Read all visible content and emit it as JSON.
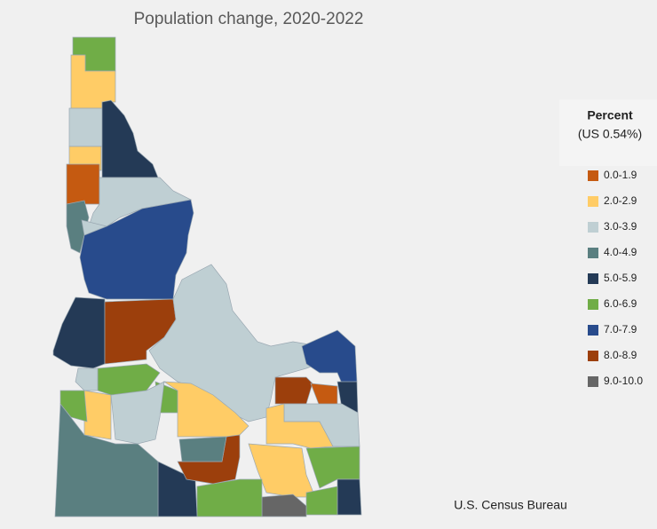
{
  "title": "Population change, 2020-2022",
  "legend": {
    "title": "Percent",
    "subtitle": "(US 0.54%)",
    "items": [
      {
        "label": "0.0-1.9",
        "color": "#c55a11"
      },
      {
        "label": "2.0-2.9",
        "color": "#ffcc66"
      },
      {
        "label": "3.0-3.9",
        "color": "#bfcfd3"
      },
      {
        "label": "4.0-4.9",
        "color": "#5a7f80"
      },
      {
        "label": "5.0-5.9",
        "color": "#243a56"
      },
      {
        "label": "6.0-6.9",
        "color": "#70ad47"
      },
      {
        "label": "7.0-7.9",
        "color": "#284b8c"
      },
      {
        "label": "8.0-8.9",
        "color": "#9c3f0c"
      },
      {
        "label": "9.0-10.0",
        "color": "#666666"
      }
    ]
  },
  "source": "U.S. Census Bureau"
}
